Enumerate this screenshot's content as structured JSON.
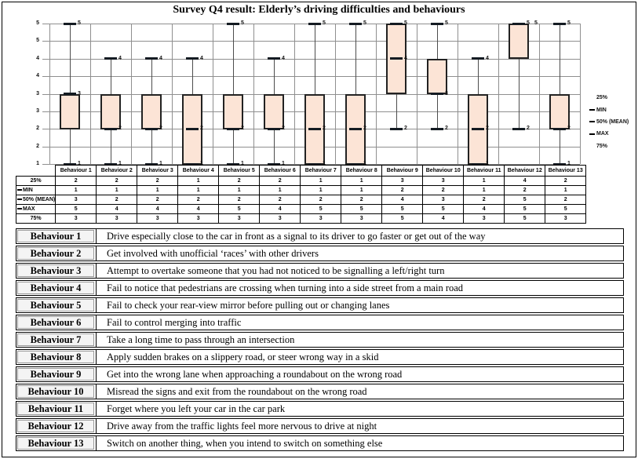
{
  "title": "Survey Q4 result: Elderly’s driving difficulties and behaviours",
  "chart_data": {
    "type": "boxplot",
    "title": "Survey Q4 result: Elderly’s driving difficulties and behaviours",
    "categories": [
      "Behaviour 1",
      "Behaviour 2",
      "Behaviour 3",
      "Behaviour 4",
      "Behaviour 5",
      "Behaviour 6",
      "Behaviour 7",
      "Behaviour 8",
      "Behaviour 9",
      "Behaviour 10",
      "Behaviour 11",
      "Behaviour 12",
      "Behaviour 13"
    ],
    "series": [
      {
        "name": "25%",
        "marker": false,
        "values": [
          2,
          2,
          2,
          1,
          2,
          2,
          1,
          1,
          3,
          3,
          1,
          4,
          2
        ]
      },
      {
        "name": "MIN",
        "marker": true,
        "values": [
          1,
          1,
          1,
          1,
          1,
          1,
          1,
          1,
          2,
          2,
          1,
          2,
          1
        ]
      },
      {
        "name": "50% (MEAN)",
        "marker": true,
        "values": [
          3,
          2,
          2,
          2,
          2,
          2,
          2,
          2,
          4,
          3,
          2,
          5,
          2
        ]
      },
      {
        "name": "MAX",
        "marker": true,
        "values": [
          5,
          4,
          4,
          4,
          5,
          4,
          5,
          5,
          5,
          5,
          4,
          5,
          5
        ]
      },
      {
        "name": "75%",
        "marker": false,
        "values": [
          3,
          3,
          3,
          3,
          3,
          3,
          3,
          3,
          5,
          4,
          3,
          5,
          3
        ]
      }
    ],
    "ylim": [
      1,
      5
    ],
    "ytick_interval": 0.5,
    "ytick_labels_top_to_bottom": [
      "5",
      "5",
      "4",
      "4",
      "3",
      "3",
      "2",
      "2",
      "1"
    ],
    "legend_position": "right",
    "grid": true,
    "data_label_series": [
      "MIN",
      "50% (MEAN)",
      "MAX"
    ],
    "colors": {
      "box_fill": "#fce4d6",
      "box_border": "#222222",
      "gridline": "#8f8f8f",
      "marker": "#141b22"
    }
  },
  "behaviour_table": {
    "rows": [
      {
        "label": "Behaviour 1",
        "text": "Drive especially close to the car in front as a signal to its driver to go faster or get out of the way"
      },
      {
        "label": "Behaviour 2",
        "text": "Get involved with unofficial ‘races’ with other drivers"
      },
      {
        "label": "Behaviour 3",
        "text": "Attempt to overtake someone that you had not noticed to be signalling a left/right turn"
      },
      {
        "label": "Behaviour 4",
        "text": "Fail to notice that pedestrians are crossing when turning into a side street from a main road"
      },
      {
        "label": "Behaviour 5",
        "text": "Fail to check your rear-view mirror before pulling out or changing lanes"
      },
      {
        "label": "Behaviour 6",
        "text": "Fail to control merging into traffic"
      },
      {
        "label": "Behaviour 7",
        "text": "Take a long time to pass through an intersection"
      },
      {
        "label": "Behaviour 8",
        "text": "Apply sudden brakes on a slippery road, or steer wrong way in a skid"
      },
      {
        "label": "Behaviour 9",
        "text": "Get into the wrong lane when approaching a roundabout on the wrong road"
      },
      {
        "label": "Behaviour 10",
        "text": "Misread the signs and exit from the roundabout on the wrong road"
      },
      {
        "label": "Behaviour 11",
        "text": "Forget where you left your car in the car park"
      },
      {
        "label": "Behaviour 12",
        "text": "Drive away from the traffic lights feel more nervous to drive at night"
      },
      {
        "label": "Behaviour 13",
        "text": "Switch on another thing, when you intend to switch on something else"
      }
    ]
  }
}
